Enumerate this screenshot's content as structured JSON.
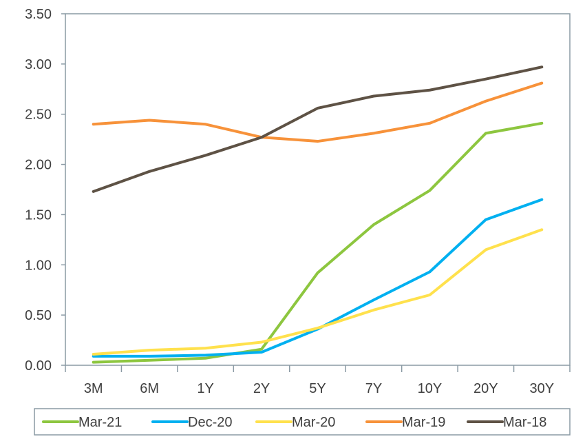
{
  "chart_data": {
    "type": "line",
    "categories": [
      "3M",
      "6M",
      "1Y",
      "2Y",
      "5Y",
      "7Y",
      "10Y",
      "20Y",
      "30Y"
    ],
    "ylim": [
      0,
      3.5
    ],
    "yticks": [
      "0.00",
      "0.50",
      "1.00",
      "1.50",
      "2.00",
      "2.50",
      "3.00",
      "3.50"
    ],
    "grid": false,
    "legend_position": "bottom",
    "series": [
      {
        "name": "Mar-21",
        "color": "#8dc63f",
        "values": [
          0.03,
          0.05,
          0.07,
          0.16,
          0.92,
          1.4,
          1.74,
          2.31,
          2.41
        ]
      },
      {
        "name": "Dec-20",
        "color": "#00b0f0",
        "values": [
          0.09,
          0.09,
          0.1,
          0.13,
          0.36,
          0.65,
          0.93,
          1.45,
          1.65
        ]
      },
      {
        "name": "Mar-20",
        "color": "#ffe14d",
        "values": [
          0.11,
          0.15,
          0.17,
          0.23,
          0.37,
          0.55,
          0.7,
          1.15,
          1.35
        ]
      },
      {
        "name": "Mar-19",
        "color": "#f7923a",
        "values": [
          2.4,
          2.44,
          2.4,
          2.27,
          2.23,
          2.31,
          2.41,
          2.63,
          2.81
        ]
      },
      {
        "name": "Mar-18",
        "color": "#5e5245",
        "values": [
          1.73,
          1.93,
          2.09,
          2.27,
          2.56,
          2.68,
          2.74,
          2.85,
          2.97
        ]
      }
    ]
  }
}
